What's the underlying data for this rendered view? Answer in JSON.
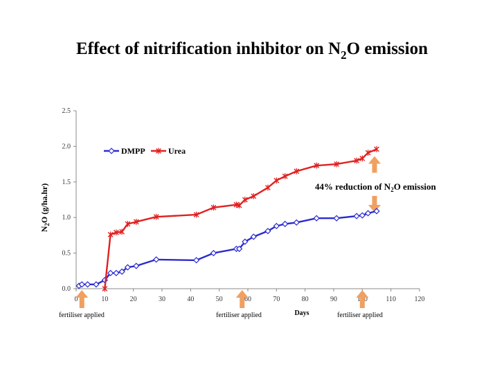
{
  "slide": {
    "title_parts": [
      "Effect of nitrification inhibitor on N",
      "2",
      "O emission"
    ]
  },
  "chart_data": {
    "type": "line",
    "xlabel": "Days",
    "ylabel_parts": [
      "N",
      "2",
      "O (g/ha.hr)"
    ],
    "xlim": [
      0,
      120
    ],
    "ylim": [
      0,
      2.5
    ],
    "x_ticks": [
      "0",
      "10",
      "20",
      "30",
      "40",
      "50",
      "60",
      "70",
      "80",
      "90",
      "100",
      "110",
      "120"
    ],
    "y_ticks": [
      "0.0",
      "0.5",
      "1.0",
      "1.5",
      "2.0",
      "2.5"
    ],
    "grid": false,
    "legend_position": "top-left",
    "series": [
      {
        "name": "DMPP",
        "color": "#2b2bd0",
        "marker": "diamond",
        "x": [
          1,
          2,
          4,
          7,
          10,
          12,
          14,
          16,
          18,
          21,
          28,
          42,
          48,
          56,
          57,
          59,
          62,
          67,
          70,
          73,
          77,
          84,
          91,
          98,
          100,
          102,
          105
        ],
        "y": [
          0.04,
          0.06,
          0.06,
          0.06,
          0.12,
          0.22,
          0.22,
          0.24,
          0.3,
          0.32,
          0.41,
          0.4,
          0.5,
          0.56,
          0.56,
          0.66,
          0.73,
          0.81,
          0.88,
          0.91,
          0.93,
          0.99,
          0.99,
          1.02,
          1.03,
          1.06,
          1.09
        ]
      },
      {
        "name": "Urea",
        "color": "#e02020",
        "marker": "x",
        "x": [
          10,
          12,
          14,
          16,
          18,
          21,
          28,
          42,
          48,
          56,
          57,
          59,
          62,
          67,
          70,
          73,
          77,
          84,
          91,
          98,
          100,
          102,
          105
        ],
        "y": [
          0.0,
          0.76,
          0.79,
          0.8,
          0.91,
          0.94,
          1.01,
          1.04,
          1.14,
          1.18,
          1.17,
          1.25,
          1.3,
          1.42,
          1.52,
          1.58,
          1.65,
          1.73,
          1.75,
          1.8,
          1.83,
          1.91,
          1.96
        ]
      }
    ],
    "fertiliser_days": [
      2,
      58,
      100
    ],
    "fertiliser_label": "fertiliser applied",
    "reduction_annotation_parts": [
      "44% reduction of N",
      "2",
      "O emission"
    ],
    "reduction_arrow_x": 105,
    "reduction_arrow_from": 1.09,
    "reduction_arrow_to": 1.96
  }
}
